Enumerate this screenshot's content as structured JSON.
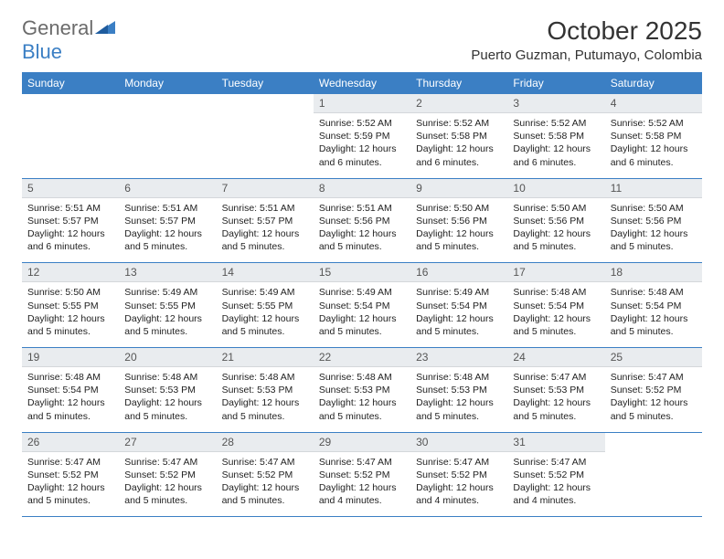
{
  "logo": {
    "word1": "General",
    "word2": "Blue"
  },
  "title": "October 2025",
  "location": "Puerto Guzman, Putumayo, Colombia",
  "colors": {
    "header_blue": "#3b7fc4",
    "daynum_bg": "#e9ecef",
    "text": "#222222",
    "logo_gray": "#6b6b6b"
  },
  "dayHeaders": [
    "Sunday",
    "Monday",
    "Tuesday",
    "Wednesday",
    "Thursday",
    "Friday",
    "Saturday"
  ],
  "weeks": [
    [
      null,
      null,
      null,
      {
        "n": "1",
        "sunrise": "5:52 AM",
        "sunset": "5:59 PM",
        "daylight": "12 hours and 6 minutes."
      },
      {
        "n": "2",
        "sunrise": "5:52 AM",
        "sunset": "5:58 PM",
        "daylight": "12 hours and 6 minutes."
      },
      {
        "n": "3",
        "sunrise": "5:52 AM",
        "sunset": "5:58 PM",
        "daylight": "12 hours and 6 minutes."
      },
      {
        "n": "4",
        "sunrise": "5:52 AM",
        "sunset": "5:58 PM",
        "daylight": "12 hours and 6 minutes."
      }
    ],
    [
      {
        "n": "5",
        "sunrise": "5:51 AM",
        "sunset": "5:57 PM",
        "daylight": "12 hours and 6 minutes."
      },
      {
        "n": "6",
        "sunrise": "5:51 AM",
        "sunset": "5:57 PM",
        "daylight": "12 hours and 5 minutes."
      },
      {
        "n": "7",
        "sunrise": "5:51 AM",
        "sunset": "5:57 PM",
        "daylight": "12 hours and 5 minutes."
      },
      {
        "n": "8",
        "sunrise": "5:51 AM",
        "sunset": "5:56 PM",
        "daylight": "12 hours and 5 minutes."
      },
      {
        "n": "9",
        "sunrise": "5:50 AM",
        "sunset": "5:56 PM",
        "daylight": "12 hours and 5 minutes."
      },
      {
        "n": "10",
        "sunrise": "5:50 AM",
        "sunset": "5:56 PM",
        "daylight": "12 hours and 5 minutes."
      },
      {
        "n": "11",
        "sunrise": "5:50 AM",
        "sunset": "5:56 PM",
        "daylight": "12 hours and 5 minutes."
      }
    ],
    [
      {
        "n": "12",
        "sunrise": "5:50 AM",
        "sunset": "5:55 PM",
        "daylight": "12 hours and 5 minutes."
      },
      {
        "n": "13",
        "sunrise": "5:49 AM",
        "sunset": "5:55 PM",
        "daylight": "12 hours and 5 minutes."
      },
      {
        "n": "14",
        "sunrise": "5:49 AM",
        "sunset": "5:55 PM",
        "daylight": "12 hours and 5 minutes."
      },
      {
        "n": "15",
        "sunrise": "5:49 AM",
        "sunset": "5:54 PM",
        "daylight": "12 hours and 5 minutes."
      },
      {
        "n": "16",
        "sunrise": "5:49 AM",
        "sunset": "5:54 PM",
        "daylight": "12 hours and 5 minutes."
      },
      {
        "n": "17",
        "sunrise": "5:48 AM",
        "sunset": "5:54 PM",
        "daylight": "12 hours and 5 minutes."
      },
      {
        "n": "18",
        "sunrise": "5:48 AM",
        "sunset": "5:54 PM",
        "daylight": "12 hours and 5 minutes."
      }
    ],
    [
      {
        "n": "19",
        "sunrise": "5:48 AM",
        "sunset": "5:54 PM",
        "daylight": "12 hours and 5 minutes."
      },
      {
        "n": "20",
        "sunrise": "5:48 AM",
        "sunset": "5:53 PM",
        "daylight": "12 hours and 5 minutes."
      },
      {
        "n": "21",
        "sunrise": "5:48 AM",
        "sunset": "5:53 PM",
        "daylight": "12 hours and 5 minutes."
      },
      {
        "n": "22",
        "sunrise": "5:48 AM",
        "sunset": "5:53 PM",
        "daylight": "12 hours and 5 minutes."
      },
      {
        "n": "23",
        "sunrise": "5:48 AM",
        "sunset": "5:53 PM",
        "daylight": "12 hours and 5 minutes."
      },
      {
        "n": "24",
        "sunrise": "5:47 AM",
        "sunset": "5:53 PM",
        "daylight": "12 hours and 5 minutes."
      },
      {
        "n": "25",
        "sunrise": "5:47 AM",
        "sunset": "5:52 PM",
        "daylight": "12 hours and 5 minutes."
      }
    ],
    [
      {
        "n": "26",
        "sunrise": "5:47 AM",
        "sunset": "5:52 PM",
        "daylight": "12 hours and 5 minutes."
      },
      {
        "n": "27",
        "sunrise": "5:47 AM",
        "sunset": "5:52 PM",
        "daylight": "12 hours and 5 minutes."
      },
      {
        "n": "28",
        "sunrise": "5:47 AM",
        "sunset": "5:52 PM",
        "daylight": "12 hours and 5 minutes."
      },
      {
        "n": "29",
        "sunrise": "5:47 AM",
        "sunset": "5:52 PM",
        "daylight": "12 hours and 4 minutes."
      },
      {
        "n": "30",
        "sunrise": "5:47 AM",
        "sunset": "5:52 PM",
        "daylight": "12 hours and 4 minutes."
      },
      {
        "n": "31",
        "sunrise": "5:47 AM",
        "sunset": "5:52 PM",
        "daylight": "12 hours and 4 minutes."
      },
      null
    ]
  ],
  "labels": {
    "sunrise": "Sunrise:",
    "sunset": "Sunset:",
    "daylight": "Daylight:"
  }
}
